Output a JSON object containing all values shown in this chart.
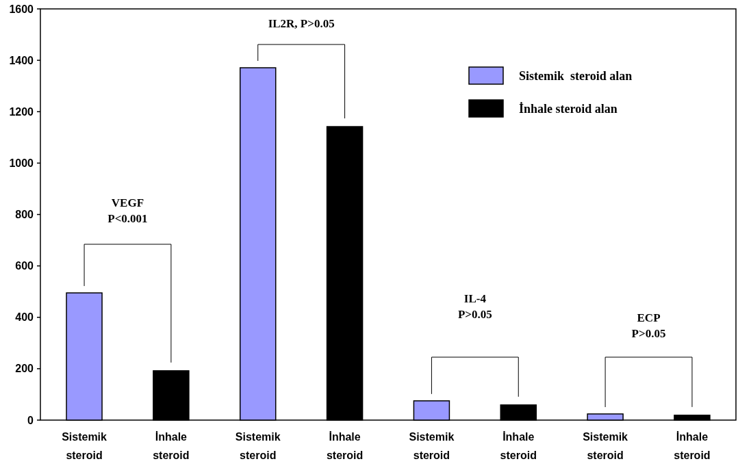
{
  "chart_data": {
    "type": "bar",
    "categories": [
      "Sistemik steroid",
      "İnhale steroid",
      "Sistemik steroid",
      "İnhale steroid",
      "Sistemik steroid",
      "İnhale steroid",
      "Sistemik steroid",
      "İnhale steroid"
    ],
    "series": [
      {
        "name": "Sistemik  steroid alan",
        "color": "#9999ff",
        "values": [
          495,
          null,
          1371,
          null,
          75,
          null,
          24,
          null
        ]
      },
      {
        "name": "İnhale steroid alan",
        "color": "#000000",
        "values": [
          null,
          192,
          null,
          1142,
          null,
          59,
          null,
          19
        ]
      }
    ],
    "ylim": [
      0,
      1600
    ],
    "yticks": [
      0,
      200,
      400,
      600,
      800,
      1000,
      1200,
      1400,
      1600
    ],
    "annotations": [
      "VEGF\nP<0.001",
      "IL2R, P>0.05",
      "IL-4\nP>0.05",
      "ECP\nP>0.05"
    ],
    "legend": "top right"
  }
}
